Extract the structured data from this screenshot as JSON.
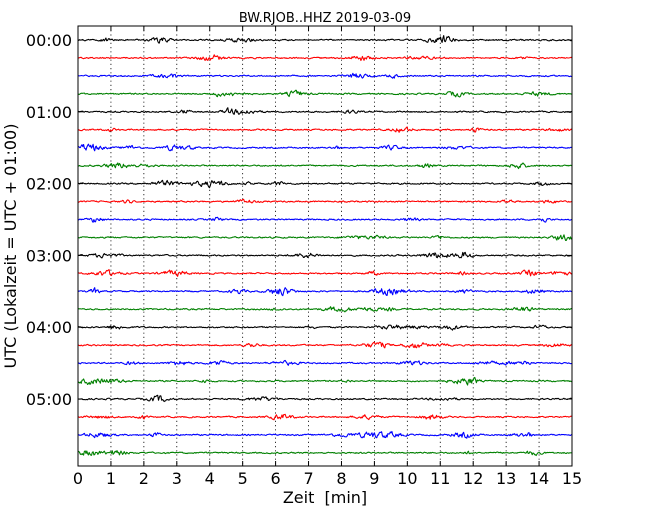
{
  "chart_data": {
    "type": "line",
    "title": "BW.RJOB..HHZ 2019-03-09",
    "xlabel": "Zeit  [min]",
    "ylabel": "UTC (Lokalzeit = UTC + 01:00)",
    "xlim": [
      0,
      15
    ],
    "x_ticks": [
      "0",
      "1",
      "2",
      "3",
      "4",
      "5",
      "6",
      "7",
      "8",
      "9",
      "10",
      "11",
      "12",
      "13",
      "14",
      "15"
    ],
    "y_tick_labels": [
      "00:00",
      "01:00",
      "02:00",
      "03:00",
      "04:00",
      "05:00"
    ],
    "trace_interval_minutes": 15,
    "trace_count": 24,
    "trace_colors": [
      "#000000",
      "#ff0000",
      "#0000ff",
      "#008000"
    ],
    "grid": "vertical dotted"
  }
}
